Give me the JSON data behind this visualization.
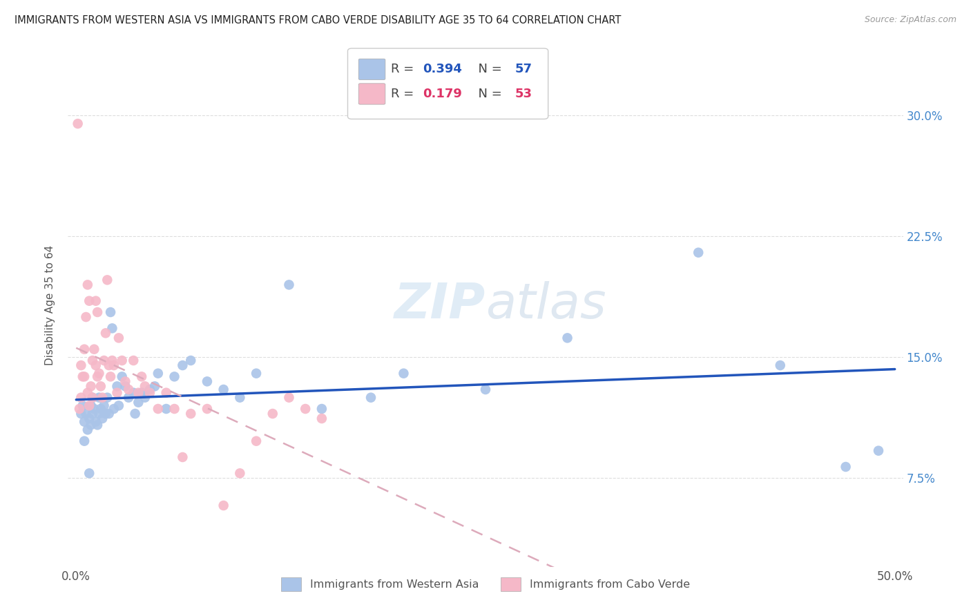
{
  "title": "IMMIGRANTS FROM WESTERN ASIA VS IMMIGRANTS FROM CABO VERDE DISABILITY AGE 35 TO 64 CORRELATION CHART",
  "source": "Source: ZipAtlas.com",
  "ylabel": "Disability Age 35 to 64",
  "yticks": [
    "7.5%",
    "15.0%",
    "22.5%",
    "30.0%"
  ],
  "ytick_vals": [
    0.075,
    0.15,
    0.225,
    0.3
  ],
  "xlim": [
    -0.005,
    0.505
  ],
  "ylim": [
    0.02,
    0.345
  ],
  "r_blue": 0.394,
  "n_blue": 57,
  "r_pink": 0.179,
  "n_pink": 53,
  "blue_color": "#aac4e8",
  "pink_color": "#f5b8c8",
  "blue_line_color": "#2255bb",
  "pink_line_color": "#dd3366",
  "pink_line_dashed_color": "#ddaabb",
  "watermark_color": "#c8ddf0",
  "background_color": "#ffffff",
  "grid_color": "#dddddd",
  "blue_scatter_x": [
    0.003,
    0.004,
    0.005,
    0.006,
    0.007,
    0.008,
    0.009,
    0.009,
    0.01,
    0.01,
    0.011,
    0.012,
    0.013,
    0.014,
    0.014,
    0.015,
    0.016,
    0.017,
    0.018,
    0.019,
    0.02,
    0.021,
    0.022,
    0.023,
    0.025,
    0.026,
    0.028,
    0.03,
    0.032,
    0.035,
    0.036,
    0.038,
    0.04,
    0.042,
    0.045,
    0.048,
    0.05,
    0.055,
    0.06,
    0.065,
    0.07,
    0.08,
    0.09,
    0.1,
    0.11,
    0.13,
    0.15,
    0.18,
    0.2,
    0.25,
    0.3,
    0.38,
    0.43,
    0.47,
    0.49,
    0.005,
    0.008
  ],
  "blue_scatter_y": [
    0.115,
    0.12,
    0.11,
    0.115,
    0.105,
    0.112,
    0.108,
    0.12,
    0.115,
    0.125,
    0.118,
    0.11,
    0.108,
    0.115,
    0.125,
    0.118,
    0.112,
    0.12,
    0.115,
    0.125,
    0.115,
    0.178,
    0.168,
    0.118,
    0.132,
    0.12,
    0.138,
    0.132,
    0.125,
    0.128,
    0.115,
    0.122,
    0.128,
    0.125,
    0.13,
    0.132,
    0.14,
    0.118,
    0.138,
    0.145,
    0.148,
    0.135,
    0.13,
    0.125,
    0.14,
    0.195,
    0.118,
    0.125,
    0.14,
    0.13,
    0.162,
    0.215,
    0.145,
    0.082,
    0.092,
    0.098,
    0.078
  ],
  "pink_scatter_x": [
    0.001,
    0.002,
    0.003,
    0.003,
    0.004,
    0.005,
    0.005,
    0.006,
    0.007,
    0.007,
    0.008,
    0.008,
    0.009,
    0.01,
    0.01,
    0.011,
    0.012,
    0.012,
    0.013,
    0.013,
    0.014,
    0.015,
    0.016,
    0.017,
    0.018,
    0.019,
    0.02,
    0.021,
    0.022,
    0.023,
    0.025,
    0.026,
    0.028,
    0.03,
    0.032,
    0.035,
    0.038,
    0.04,
    0.042,
    0.045,
    0.05,
    0.055,
    0.06,
    0.065,
    0.07,
    0.08,
    0.09,
    0.1,
    0.11,
    0.12,
    0.13,
    0.14,
    0.15
  ],
  "pink_scatter_y": [
    0.295,
    0.118,
    0.125,
    0.145,
    0.138,
    0.155,
    0.138,
    0.175,
    0.128,
    0.195,
    0.12,
    0.185,
    0.132,
    0.125,
    0.148,
    0.155,
    0.145,
    0.185,
    0.138,
    0.178,
    0.14,
    0.132,
    0.125,
    0.148,
    0.165,
    0.198,
    0.145,
    0.138,
    0.148,
    0.145,
    0.128,
    0.162,
    0.148,
    0.135,
    0.13,
    0.148,
    0.128,
    0.138,
    0.132,
    0.128,
    0.118,
    0.128,
    0.118,
    0.088,
    0.115,
    0.118,
    0.058,
    0.078,
    0.098,
    0.115,
    0.125,
    0.118,
    0.112
  ]
}
